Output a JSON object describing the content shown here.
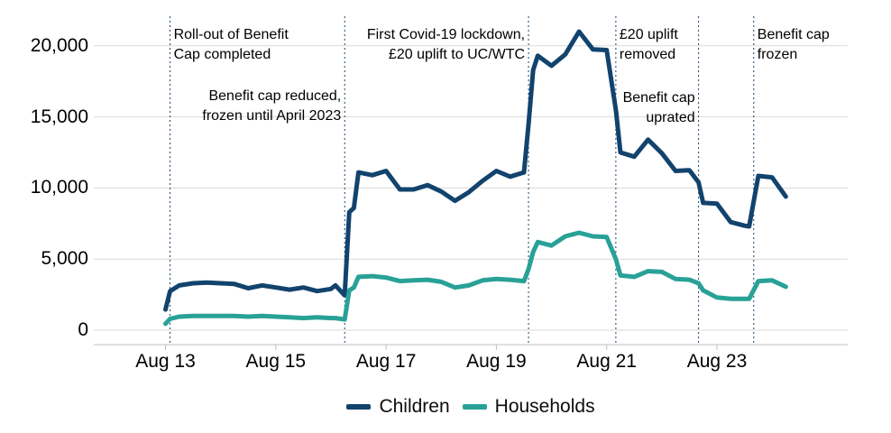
{
  "legend": {
    "children_label": "Children",
    "households_label": "Households"
  },
  "colors": {
    "children": "#12436D",
    "households": "#28A197",
    "event_line": "#12436D",
    "gridline": "#d9d9d9",
    "axis": "#bfbfbf",
    "text": "#000000"
  },
  "chart_data": {
    "type": "line",
    "title": "",
    "xlabel": "",
    "ylabel": "",
    "ylim": [
      0,
      21000
    ],
    "grid": "horizontal",
    "legend_position": "bottom-center",
    "y_ticks": [
      {
        "v": 0,
        "label": "0"
      },
      {
        "v": 5000,
        "label": "5,000"
      },
      {
        "v": 10000,
        "label": "10,000"
      },
      {
        "v": 15000,
        "label": "15,000"
      },
      {
        "v": 20000,
        "label": "20,000"
      }
    ],
    "x_ticks": [
      {
        "date": "Aug 2013",
        "label": "Aug 13"
      },
      {
        "date": "Aug 2015",
        "label": "Aug 15"
      },
      {
        "date": "Aug 2017",
        "label": "Aug 17"
      },
      {
        "date": "Aug 2019",
        "label": "Aug 19"
      },
      {
        "date": "Aug 2021",
        "label": "Aug 21"
      },
      {
        "date": "Aug 2023",
        "label": "Aug 23"
      }
    ],
    "events": [
      {
        "date": "Sep 2013",
        "lines": [
          "Roll-out of Benefit",
          "Cap completed"
        ],
        "side": "right",
        "top": 28
      },
      {
        "date": "Nov 2016",
        "lines": [
          "Benefit cap reduced,",
          "frozen until April 2023"
        ],
        "side": "left",
        "top": 96
      },
      {
        "date": "Mar 2020",
        "lines": [
          "First Covid-19 lockdown,",
          "£20 uplift to UC/WTC"
        ],
        "side": "left",
        "top": 28
      },
      {
        "date": "Oct 2021",
        "lines": [
          "£20 uplift",
          "removed"
        ],
        "side": "right",
        "top": 28
      },
      {
        "date": "Apr 2023",
        "lines": [
          "Benefit cap",
          "uprated"
        ],
        "side": "left",
        "top": 98
      },
      {
        "date": "Apr 2024",
        "lines": [
          "Benefit cap",
          "frozen"
        ],
        "side": "right",
        "top": 28
      }
    ],
    "series": [
      {
        "name": "Children",
        "color": "#12436D",
        "points": [
          [
            "Aug 2013",
            1450
          ],
          [
            "Sep 2013",
            2750
          ],
          [
            "Nov 2013",
            3150
          ],
          [
            "Feb 2014",
            3300
          ],
          [
            "May 2014",
            3350
          ],
          [
            "Aug 2014",
            3300
          ],
          [
            "Nov 2014",
            3250
          ],
          [
            "Feb 2015",
            2950
          ],
          [
            "May 2015",
            3150
          ],
          [
            "Aug 2015",
            3000
          ],
          [
            "Nov 2015",
            2850
          ],
          [
            "Feb 2016",
            3000
          ],
          [
            "May 2016",
            2750
          ],
          [
            "Aug 2016",
            2900
          ],
          [
            "Sep 2016",
            3150
          ],
          [
            "Nov 2016",
            2450
          ],
          [
            "Dec 2016",
            8300
          ],
          [
            "Jan 2017",
            8600
          ],
          [
            "Feb 2017",
            11100
          ],
          [
            "May 2017",
            10900
          ],
          [
            "Aug 2017",
            11200
          ],
          [
            "Nov 2017",
            9900
          ],
          [
            "Feb 2018",
            9900
          ],
          [
            "May 2018",
            10200
          ],
          [
            "Aug 2018",
            9750
          ],
          [
            "Nov 2018",
            9100
          ],
          [
            "Feb 2019",
            9700
          ],
          [
            "May 2019",
            10500
          ],
          [
            "Aug 2019",
            11200
          ],
          [
            "Nov 2019",
            10800
          ],
          [
            "Feb 2020",
            11100
          ],
          [
            "Mar 2020",
            14500
          ],
          [
            "Apr 2020",
            18300
          ],
          [
            "May 2020",
            19300
          ],
          [
            "Aug 2020",
            18600
          ],
          [
            "Nov 2020",
            19400
          ],
          [
            "Feb 2021",
            21000
          ],
          [
            "May 2021",
            19750
          ],
          [
            "Aug 2021",
            19700
          ],
          [
            "Oct 2021",
            15500
          ],
          [
            "Nov 2021",
            12500
          ],
          [
            "Feb 2022",
            12200
          ],
          [
            "May 2022",
            13400
          ],
          [
            "Aug 2022",
            12450
          ],
          [
            "Nov 2022",
            11200
          ],
          [
            "Feb 2023",
            11250
          ],
          [
            "Apr 2023",
            10400
          ],
          [
            "May 2023",
            8950
          ],
          [
            "Aug 2023",
            8900
          ],
          [
            "Nov 2023",
            7600
          ],
          [
            "Feb 2024",
            7350
          ],
          [
            "Mar 2024",
            7300
          ],
          [
            "May 2024",
            10850
          ],
          [
            "Aug 2024",
            10750
          ],
          [
            "Nov 2024",
            9400
          ]
        ]
      },
      {
        "name": "Households",
        "color": "#28A197",
        "points": [
          [
            "Aug 2013",
            450
          ],
          [
            "Sep 2013",
            800
          ],
          [
            "Nov 2013",
            950
          ],
          [
            "Feb 2014",
            1000
          ],
          [
            "May 2014",
            1000
          ],
          [
            "Aug 2014",
            1000
          ],
          [
            "Nov 2014",
            1000
          ],
          [
            "Feb 2015",
            950
          ],
          [
            "May 2015",
            1000
          ],
          [
            "Aug 2015",
            950
          ],
          [
            "Nov 2015",
            900
          ],
          [
            "Feb 2016",
            850
          ],
          [
            "May 2016",
            900
          ],
          [
            "Aug 2016",
            850
          ],
          [
            "Sep 2016",
            850
          ],
          [
            "Nov 2016",
            750
          ],
          [
            "Dec 2016",
            2800
          ],
          [
            "Jan 2017",
            3000
          ],
          [
            "Feb 2017",
            3750
          ],
          [
            "May 2017",
            3800
          ],
          [
            "Aug 2017",
            3700
          ],
          [
            "Nov 2017",
            3450
          ],
          [
            "Feb 2018",
            3500
          ],
          [
            "May 2018",
            3550
          ],
          [
            "Aug 2018",
            3400
          ],
          [
            "Nov 2018",
            3000
          ],
          [
            "Feb 2019",
            3150
          ],
          [
            "May 2019",
            3500
          ],
          [
            "Aug 2019",
            3600
          ],
          [
            "Nov 2019",
            3550
          ],
          [
            "Feb 2020",
            3450
          ],
          [
            "Mar 2020",
            4300
          ],
          [
            "Apr 2020",
            5500
          ],
          [
            "May 2020",
            6200
          ],
          [
            "Aug 2020",
            5950
          ],
          [
            "Nov 2020",
            6600
          ],
          [
            "Feb 2021",
            6850
          ],
          [
            "May 2021",
            6600
          ],
          [
            "Aug 2021",
            6550
          ],
          [
            "Oct 2021",
            5000
          ],
          [
            "Nov 2021",
            3850
          ],
          [
            "Feb 2022",
            3750
          ],
          [
            "May 2022",
            4150
          ],
          [
            "Aug 2022",
            4100
          ],
          [
            "Nov 2022",
            3600
          ],
          [
            "Feb 2023",
            3550
          ],
          [
            "Apr 2023",
            3300
          ],
          [
            "May 2023",
            2800
          ],
          [
            "Aug 2023",
            2300
          ],
          [
            "Nov 2023",
            2200
          ],
          [
            "Feb 2024",
            2200
          ],
          [
            "Mar 2024",
            2200
          ],
          [
            "May 2024",
            3450
          ],
          [
            "Aug 2024",
            3500
          ],
          [
            "Nov 2024",
            3050
          ]
        ]
      }
    ]
  }
}
